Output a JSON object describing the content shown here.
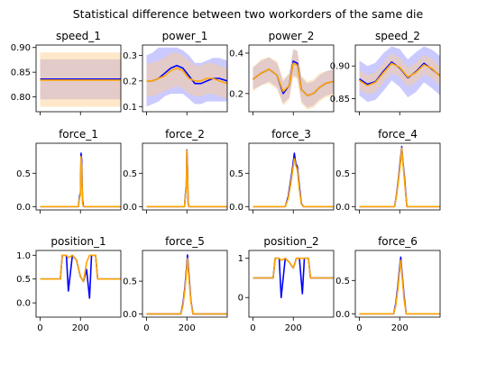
{
  "chart_data": {
    "type": "line",
    "title": "Statistical difference between two workorders of the same die",
    "colors": {
      "line_a": "#0000ff",
      "line_b": "#ffa500",
      "band_a": "#6666ff",
      "band_b": "#ffcc88"
    },
    "subplots": [
      {
        "title": "speed_1",
        "ylim": [
          0.77,
          0.905
        ],
        "yticks": [
          "0.80",
          "0.85",
          "0.90"
        ],
        "ytick_values": [
          0.8,
          0.85,
          0.9
        ],
        "x": [
          0,
          400
        ],
        "series": [
          {
            "color": "blue",
            "values": [
              0.836,
              0.836
            ],
            "band": [
              [
                0.795,
                0.876
              ],
              [
                0.795,
                0.876
              ]
            ]
          },
          {
            "color": "orange",
            "values": [
              0.834,
              0.834
            ],
            "band": [
              [
                0.78,
                0.89
              ],
              [
                0.78,
                0.89
              ]
            ]
          }
        ]
      },
      {
        "title": "power_1",
        "ylim": [
          0.08,
          0.34
        ],
        "yticks": [
          "0.1",
          "0.2",
          "0.3"
        ],
        "ytick_values": [
          0.1,
          0.2,
          0.3
        ],
        "x": [
          0,
          30,
          60,
          90,
          120,
          150,
          180,
          210,
          240,
          270,
          300,
          330,
          360,
          400
        ],
        "series": [
          {
            "color": "blue",
            "values": [
              0.2,
              0.2,
              0.21,
              0.23,
              0.25,
              0.26,
              0.25,
              0.22,
              0.19,
              0.19,
              0.2,
              0.21,
              0.21,
              0.2
            ],
            "band": [
              [
                0.1,
                0.3
              ],
              [
                0.11,
                0.31
              ],
              [
                0.12,
                0.33
              ],
              [
                0.14,
                0.33
              ],
              [
                0.15,
                0.33
              ],
              [
                0.15,
                0.33
              ],
              [
                0.15,
                0.32
              ],
              [
                0.13,
                0.3
              ],
              [
                0.11,
                0.27
              ],
              [
                0.11,
                0.27
              ],
              [
                0.12,
                0.28
              ],
              [
                0.12,
                0.29
              ],
              [
                0.12,
                0.29
              ],
              [
                0.12,
                0.28
              ]
            ]
          },
          {
            "color": "orange",
            "values": [
              0.2,
              0.2,
              0.21,
              0.22,
              0.24,
              0.25,
              0.24,
              0.21,
              0.2,
              0.2,
              0.21,
              0.21,
              0.2,
              0.19
            ],
            "band": [
              [
                0.14,
                0.27
              ],
              [
                0.14,
                0.27
              ],
              [
                0.15,
                0.28
              ],
              [
                0.16,
                0.29
              ],
              [
                0.17,
                0.31
              ],
              [
                0.18,
                0.31
              ],
              [
                0.17,
                0.3
              ],
              [
                0.15,
                0.28
              ],
              [
                0.14,
                0.26
              ],
              [
                0.14,
                0.26
              ],
              [
                0.15,
                0.27
              ],
              [
                0.15,
                0.27
              ],
              [
                0.14,
                0.26
              ],
              [
                0.13,
                0.25
              ]
            ]
          }
        ]
      },
      {
        "title": "power_2",
        "ylim": [
          0.11,
          0.44
        ],
        "yticks": [
          "0.2",
          "0.4"
        ],
        "ytick_values": [
          0.2,
          0.4
        ],
        "x": [
          0,
          40,
          80,
          120,
          150,
          180,
          200,
          220,
          240,
          270,
          300,
          330,
          360,
          400
        ],
        "series": [
          {
            "color": "blue",
            "values": [
              0.27,
              0.3,
              0.32,
              0.29,
              0.2,
              0.24,
              0.36,
              0.35,
              0.22,
              0.19,
              0.2,
              0.23,
              0.25,
              0.26
            ],
            "band": [
              [
                0.22,
                0.33
              ],
              [
                0.24,
                0.36
              ],
              [
                0.26,
                0.38
              ],
              [
                0.23,
                0.35
              ],
              [
                0.15,
                0.26
              ],
              [
                0.18,
                0.3
              ],
              [
                0.29,
                0.42
              ],
              [
                0.28,
                0.41
              ],
              [
                0.16,
                0.28
              ],
              [
                0.13,
                0.25
              ],
              [
                0.14,
                0.26
              ],
              [
                0.17,
                0.29
              ],
              [
                0.19,
                0.31
              ],
              [
                0.2,
                0.32
              ]
            ]
          },
          {
            "color": "orange",
            "values": [
              0.27,
              0.3,
              0.32,
              0.29,
              0.21,
              0.24,
              0.35,
              0.34,
              0.22,
              0.19,
              0.2,
              0.23,
              0.25,
              0.26
            ],
            "band": [
              [
                0.21,
                0.33
              ],
              [
                0.24,
                0.37
              ],
              [
                0.25,
                0.38
              ],
              [
                0.22,
                0.36
              ],
              [
                0.14,
                0.27
              ],
              [
                0.17,
                0.3
              ],
              [
                0.28,
                0.42
              ],
              [
                0.27,
                0.41
              ],
              [
                0.15,
                0.29
              ],
              [
                0.12,
                0.26
              ],
              [
                0.13,
                0.27
              ],
              [
                0.16,
                0.3
              ],
              [
                0.18,
                0.31
              ],
              [
                0.19,
                0.32
              ]
            ]
          }
        ]
      },
      {
        "title": "speed_2",
        "ylim": [
          0.83,
          0.932
        ],
        "yticks": [
          "0.85",
          "0.90"
        ],
        "ytick_values": [
          0.85,
          0.9
        ],
        "x": [
          0,
          40,
          80,
          120,
          160,
          200,
          240,
          280,
          320,
          360,
          400
        ],
        "series": [
          {
            "color": "blue",
            "values": [
              0.88,
              0.872,
              0.876,
              0.892,
              0.906,
              0.897,
              0.882,
              0.891,
              0.904,
              0.895,
              0.885
            ],
            "band": [
              [
                0.855,
                0.908
              ],
              [
                0.845,
                0.9
              ],
              [
                0.848,
                0.905
              ],
              [
                0.862,
                0.92
              ],
              [
                0.878,
                0.93
              ],
              [
                0.868,
                0.926
              ],
              [
                0.852,
                0.91
              ],
              [
                0.86,
                0.921
              ],
              [
                0.875,
                0.93
              ],
              [
                0.866,
                0.925
              ],
              [
                0.855,
                0.915
              ]
            ]
          },
          {
            "color": "orange",
            "values": [
              0.878,
              0.87,
              0.875,
              0.89,
              0.904,
              0.898,
              0.883,
              0.89,
              0.902,
              0.896,
              0.884
            ],
            "band": [
              [
                0.864,
                0.894
              ],
              [
                0.856,
                0.886
              ],
              [
                0.86,
                0.89
              ],
              [
                0.875,
                0.905
              ],
              [
                0.889,
                0.919
              ],
              [
                0.883,
                0.913
              ],
              [
                0.868,
                0.898
              ],
              [
                0.875,
                0.905
              ],
              [
                0.887,
                0.917
              ],
              [
                0.881,
                0.911
              ],
              [
                0.869,
                0.899
              ]
            ]
          }
        ]
      },
      {
        "title": "force_1",
        "ylim": [
          -0.05,
          0.95
        ],
        "yticks": [
          "0.0",
          "0.5"
        ],
        "ytick_values": [
          0.0,
          0.5
        ],
        "x": [
          0,
          190,
          195,
          200,
          203,
          206,
          210,
          215,
          400
        ],
        "series": [
          {
            "color": "blue",
            "values": [
              0,
              0,
              0.15,
              0.2,
              0.8,
              0.7,
              0.1,
              0,
              0
            ]
          },
          {
            "color": "orange",
            "values": [
              0,
              0,
              0.12,
              0.18,
              0.75,
              0.6,
              0.05,
              0,
              0
            ]
          }
        ]
      },
      {
        "title": "force_2",
        "ylim": [
          -0.05,
          0.95
        ],
        "yticks": [
          "0.0",
          "0.5"
        ],
        "ytick_values": [
          0.0,
          0.5
        ],
        "x": [
          0,
          188,
          193,
          197,
          200,
          203,
          206,
          210,
          400
        ],
        "series": [
          {
            "color": "blue",
            "values": [
              0,
              0,
              0.2,
              0.3,
              0.85,
              0.6,
              0.05,
              0,
              0
            ]
          },
          {
            "color": "orange",
            "values": [
              0,
              0,
              0.18,
              0.28,
              0.84,
              0.55,
              0.04,
              0,
              0
            ]
          }
        ]
      },
      {
        "title": "force_3",
        "ylim": [
          -0.05,
          0.95
        ],
        "yticks": [
          "0.0",
          "0.5"
        ],
        "ytick_values": [
          0.0,
          0.5
        ],
        "x": [
          0,
          160,
          175,
          185,
          195,
          205,
          212,
          220,
          230,
          240,
          250,
          400
        ],
        "series": [
          {
            "color": "blue",
            "values": [
              0,
              0,
              0.15,
              0.35,
              0.55,
              0.8,
              0.65,
              0.6,
              0.3,
              0.05,
              0,
              0
            ]
          },
          {
            "color": "orange",
            "values": [
              0,
              0,
              0.12,
              0.3,
              0.5,
              0.72,
              0.62,
              0.55,
              0.25,
              0.04,
              0,
              0
            ]
          }
        ]
      },
      {
        "title": "force_4",
        "ylim": [
          -0.05,
          0.95
        ],
        "yticks": [
          "0.0",
          "0.5"
        ],
        "ytick_values": [
          0.0,
          0.5
        ],
        "x": [
          0,
          175,
          185,
          195,
          205,
          210,
          215,
          225,
          235,
          400
        ],
        "series": [
          {
            "color": "blue",
            "values": [
              0,
              0,
              0.2,
              0.45,
              0.75,
              0.9,
              0.7,
              0.4,
              0,
              0
            ]
          },
          {
            "color": "orange",
            "values": [
              0,
              0,
              0.18,
              0.42,
              0.7,
              0.88,
              0.68,
              0.35,
              0,
              0
            ]
          }
        ]
      },
      {
        "title": "position_1",
        "ylim": [
          -0.3,
          1.1
        ],
        "yticks": [
          "0.0",
          "0.5",
          "1.0"
        ],
        "ytick_values": [
          0.0,
          0.5,
          1.0
        ],
        "x": [
          0,
          100,
          110,
          130,
          140,
          160,
          180,
          200,
          215,
          230,
          245,
          255,
          275,
          285,
          400
        ],
        "series": [
          {
            "color": "blue",
            "values": [
              0.5,
              0.5,
              1.0,
              1.0,
              0.25,
              1.0,
              0.9,
              0.55,
              0.45,
              0.7,
              0.1,
              1.0,
              1.0,
              0.5,
              0.5
            ]
          },
          {
            "color": "orange",
            "values": [
              0.5,
              0.5,
              1.0,
              1.0,
              0.95,
              1.0,
              0.9,
              0.55,
              0.45,
              0.85,
              1.0,
              1.0,
              1.0,
              0.5,
              0.5
            ]
          }
        ]
      },
      {
        "title": "force_5",
        "ylim": [
          -0.05,
          0.97
        ],
        "yticks": [
          "0.0",
          "0.5"
        ],
        "ytick_values": [
          0.0,
          0.5
        ],
        "x": [
          0,
          170,
          180,
          190,
          198,
          203,
          210,
          220,
          230,
          400
        ],
        "series": [
          {
            "color": "blue",
            "values": [
              0,
              0,
              0.15,
              0.4,
              0.7,
              0.9,
              0.6,
              0.2,
              0,
              0
            ]
          },
          {
            "color": "orange",
            "values": [
              0,
              0,
              0.12,
              0.36,
              0.65,
              0.85,
              0.55,
              0.18,
              0,
              0
            ]
          }
        ]
      },
      {
        "title": "position_2",
        "ylim": [
          -0.5,
          1.2
        ],
        "yticks": [
          "0",
          "1"
        ],
        "ytick_values": [
          0,
          1
        ],
        "x": [
          0,
          100,
          110,
          130,
          140,
          160,
          180,
          200,
          215,
          230,
          245,
          255,
          275,
          285,
          400
        ],
        "series": [
          {
            "color": "blue",
            "values": [
              0.5,
              0.5,
              1.0,
              1.0,
              0.0,
              1.0,
              0.9,
              0.75,
              1.0,
              1.0,
              0.1,
              1.0,
              1.0,
              0.5,
              0.5
            ]
          },
          {
            "color": "orange",
            "values": [
              0.5,
              0.5,
              1.0,
              1.0,
              0.95,
              1.0,
              0.9,
              0.75,
              1.0,
              1.0,
              1.0,
              1.0,
              1.0,
              0.5,
              0.5
            ]
          }
        ]
      },
      {
        "title": "force_6",
        "ylim": [
          -0.05,
          0.95
        ],
        "yticks": [
          "0.0",
          "0.5"
        ],
        "ytick_values": [
          0.0,
          0.5
        ],
        "x": [
          0,
          170,
          180,
          190,
          198,
          205,
          212,
          222,
          232,
          400
        ],
        "series": [
          {
            "color": "blue",
            "values": [
              0,
              0,
              0.15,
              0.4,
              0.65,
              0.85,
              0.6,
              0.25,
              0,
              0
            ]
          },
          {
            "color": "orange",
            "values": [
              0,
              0,
              0.12,
              0.35,
              0.6,
              0.8,
              0.55,
              0.2,
              0,
              0
            ]
          }
        ]
      }
    ],
    "xlim": [
      -20,
      400
    ],
    "xticks": [
      "0",
      "200"
    ],
    "xtick_values": [
      0,
      200
    ],
    "xtick_labels_rows": [
      2
    ]
  }
}
